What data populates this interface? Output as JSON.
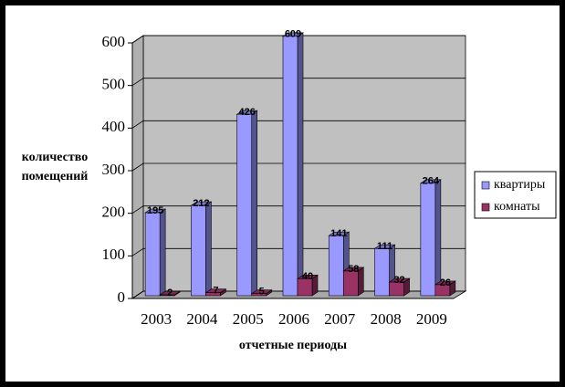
{
  "chart_data": {
    "type": "bar3d",
    "categories": [
      "2003",
      "2004",
      "2005",
      "2006",
      "2007",
      "2008",
      "2009"
    ],
    "series": [
      {
        "name": "квартиры",
        "color": "#9999ff",
        "values": [
          195,
          212,
          426,
          609,
          141,
          111,
          264
        ]
      },
      {
        "name": "комнаты",
        "color": "#993366",
        "values": [
          2,
          7,
          5,
          40,
          58,
          32,
          26
        ]
      }
    ],
    "ylim": [
      0,
      600
    ],
    "yticks": [
      0,
      100,
      200,
      300,
      400,
      500,
      600
    ],
    "x_label": "отчетные периоды",
    "y_label": "количество помещений",
    "grid": true,
    "legend": "right"
  }
}
